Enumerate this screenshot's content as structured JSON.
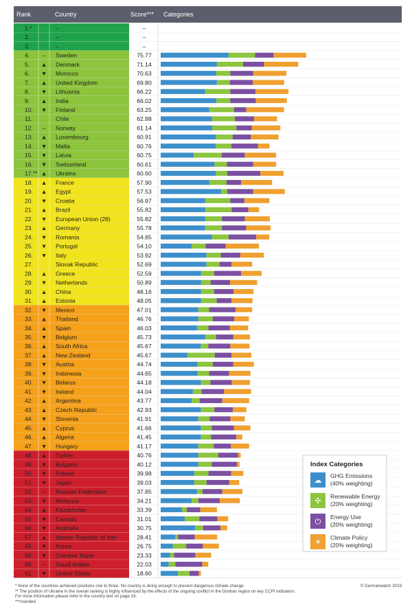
{
  "header": {
    "rank": "Rank",
    "country": "Country",
    "score": "Score***",
    "categories": "Categories"
  },
  "colors": {
    "ghg": "#3d8fcb",
    "renewable": "#8dc53e",
    "energy": "#7b4fa1",
    "policy": "#f0a030",
    "band_green": "#1fa34a",
    "band_lime": "#8cc43c",
    "band_yellow": "#f2e41c",
    "band_orange": "#f5a11a",
    "band_red": "#cd1f2b",
    "header": "#5b5f6b"
  },
  "legend": {
    "title": "Index Categories",
    "items": [
      {
        "key": "ghg",
        "line1": "GHG Emissions",
        "line2": "(40% weighting)",
        "icon": "cloud-icon"
      },
      {
        "key": "renewable",
        "line1": "Renewable Energy",
        "line2": "(20% weighting)",
        "icon": "windmill-icon"
      },
      {
        "key": "energy",
        "line1": "Energy Use",
        "line2": "(20% weighting)",
        "icon": "plug-icon"
      },
      {
        "key": "policy",
        "line1": "Climate Policy",
        "line2": "(20% weighting)",
        "icon": "sun-icon"
      }
    ]
  },
  "footnotes": [
    "*   None of the countries achieved positions one to three. No country is doing enough to prevent dangerous climate change.",
    "**  The position of Ukraine in the overall ranking is highly influenced by the effects of the ongoing conflict in the Donbas region on key CCPI indicators.",
    "     For more information please refer to the country text on page 19.",
    "***rounded"
  ],
  "copyright": "© Germanwatch 2019",
  "chart_data": {
    "type": "bar",
    "stacked": true,
    "orientation": "horizontal",
    "series_order": [
      "GHG Emissions",
      "Renewable Energy",
      "Energy Use",
      "Climate Policy"
    ],
    "rows": [
      {
        "rank": "1.*",
        "trend": "",
        "country": "–",
        "score": "–",
        "band": "green",
        "v": [
          0,
          0,
          0,
          0
        ]
      },
      {
        "rank": "2.",
        "trend": "",
        "country": "–",
        "score": "–",
        "band": "green",
        "v": [
          0,
          0,
          0,
          0
        ]
      },
      {
        "rank": "3.",
        "trend": "",
        "country": "–",
        "score": "–",
        "band": "green",
        "v": [
          0,
          0,
          0,
          0
        ]
      },
      {
        "rank": "4.",
        "trend": "–",
        "country": "Sweden",
        "score": "75.77",
        "band": "lime",
        "v": [
          31.4,
          12.2,
          8.6,
          15.1
        ]
      },
      {
        "rank": "5.",
        "trend": "▲",
        "country": "Denmark",
        "score": "71.14",
        "band": "lime",
        "v": [
          26.0,
          12.1,
          9.7,
          15.8
        ]
      },
      {
        "rank": "6.",
        "trend": "▼",
        "country": "Morocco",
        "score": "70.63",
        "band": "lime",
        "v": [
          25.7,
          6.5,
          10.6,
          15.3
        ]
      },
      {
        "rank": "7.",
        "trend": "▲",
        "country": "United Kingdom",
        "score": "69.80",
        "band": "lime",
        "v": [
          26.0,
          6.0,
          10.6,
          14.5
        ]
      },
      {
        "rank": "8.",
        "trend": "▼",
        "country": "Lithuania",
        "score": "66.22",
        "band": "lime",
        "v": [
          20.6,
          11.6,
          11.6,
          15.3
        ]
      },
      {
        "rank": "9.",
        "trend": "▲",
        "country": "India",
        "score": "66.02",
        "band": "lime",
        "v": [
          25.7,
          6.5,
          11.8,
          14.3
        ]
      },
      {
        "rank": "10.",
        "trend": "▼",
        "country": "Finland",
        "score": "63.25",
        "band": "lime",
        "v": [
          22.5,
          11.4,
          5.7,
          17.4
        ]
      },
      {
        "rank": "11.",
        "trend": "",
        "country": "Chile",
        "score": "62.88",
        "band": "lime",
        "v": [
          23.7,
          10.6,
          8.9,
          10.6
        ]
      },
      {
        "rank": "12.",
        "trend": "–",
        "country": "Norway",
        "score": "61.14",
        "band": "lime",
        "v": [
          23.9,
          11.1,
          7.1,
          13.2
        ]
      },
      {
        "rank": "13.",
        "trend": "▲",
        "country": "Luxembourg",
        "score": "60.91",
        "band": "lime",
        "v": [
          25.5,
          7.8,
          8.4,
          12.8
        ]
      },
      {
        "rank": "14.",
        "trend": "▼",
        "country": "Malta",
        "score": "60.76",
        "band": "lime",
        "v": [
          25.5,
          7.2,
          12.3,
          5.3
        ]
      },
      {
        "rank": "15.",
        "trend": "▼",
        "country": "Latvia",
        "score": "60.75",
        "band": "lime",
        "v": [
          15.3,
          12.9,
          10.7,
          14.5
        ]
      },
      {
        "rank": "16.",
        "trend": "▼",
        "country": "Switzerland",
        "score": "60.61",
        "band": "lime",
        "v": [
          24.9,
          5.7,
          12.2,
          10.6
        ]
      },
      {
        "rank": "17.**",
        "trend": "▲",
        "country": "Ukraine",
        "score": "60.60",
        "band": "lime",
        "v": [
          25.5,
          5.3,
          15.3,
          10.7
        ]
      },
      {
        "rank": "18.",
        "trend": "▲",
        "country": "France",
        "score": "57.90",
        "band": "yellow",
        "v": [
          22.5,
          7.9,
          6.8,
          14.3
        ]
      },
      {
        "rank": "19.",
        "trend": "▲",
        "country": "Egypt",
        "score": "57.53",
        "band": "yellow",
        "v": [
          28.0,
          2.8,
          12.0,
          14.6
        ]
      },
      {
        "rank": "20.",
        "trend": "▼",
        "country": "Croatia",
        "score": "56.97",
        "band": "yellow",
        "v": [
          20.6,
          11.6,
          6.5,
          11.6
        ]
      },
      {
        "rank": "21.",
        "trend": "▲",
        "country": "Brazil",
        "score": "55.82",
        "band": "yellow",
        "v": [
          20.6,
          12.2,
          7.7,
          5.0
        ]
      },
      {
        "rank": "22.",
        "trend": "▼",
        "country": "European Union (28)",
        "score": "55.82",
        "band": "yellow",
        "v": [
          20.6,
          7.7,
          10.6,
          11.6
        ]
      },
      {
        "rank": "23.",
        "trend": "▲",
        "country": "Germany",
        "score": "55.78",
        "band": "yellow",
        "v": [
          20.6,
          7.7,
          11.2,
          11.3
        ]
      },
      {
        "rank": "24.",
        "trend": "▼",
        "country": "Romania",
        "score": "54.85",
        "band": "yellow",
        "v": [
          23.7,
          7.7,
          12.8,
          6.0
        ]
      },
      {
        "rank": "25.",
        "trend": "▼",
        "country": "Portugal",
        "score": "54.10",
        "band": "yellow",
        "v": [
          14.3,
          6.5,
          9.3,
          15.3
        ]
      },
      {
        "rank": "26.",
        "trend": "▼",
        "country": "Italy",
        "score": "53.92",
        "band": "yellow",
        "v": [
          21.2,
          6.6,
          9.0,
          10.9
        ]
      },
      {
        "rank": "27.",
        "trend": "",
        "country": "Slovak Republic",
        "score": "52.69",
        "band": "yellow",
        "v": [
          21.2,
          6.0,
          5.6,
          9.5
        ]
      },
      {
        "rank": "28.",
        "trend": "▲",
        "country": "Greece",
        "score": "52.59",
        "band": "yellow",
        "v": [
          18.7,
          6.0,
          12.5,
          9.5
        ]
      },
      {
        "rank": "29.",
        "trend": "▼",
        "country": "Netherlands",
        "score": "50.89",
        "band": "yellow",
        "v": [
          18.7,
          4.4,
          9.0,
          12.5
        ]
      },
      {
        "rank": "30.",
        "trend": "▲",
        "country": "China",
        "score": "48.16",
        "band": "yellow",
        "v": [
          18.7,
          6.0,
          9.0,
          9.2
        ]
      },
      {
        "rank": "31.",
        "trend": "▲",
        "country": "Estonia",
        "score": "48.05",
        "band": "yellow",
        "v": [
          18.7,
          7.2,
          6.8,
          9.8
        ]
      },
      {
        "rank": "32.",
        "trend": "▼",
        "country": "Mexico",
        "score": "47.01",
        "band": "orange",
        "v": [
          17.4,
          5.0,
          12.2,
          7.7
        ]
      },
      {
        "rank": "33.",
        "trend": "▲",
        "country": "Thailand",
        "score": "46.76",
        "band": "orange",
        "v": [
          17.4,
          6.7,
          9.9,
          6.8
        ]
      },
      {
        "rank": "34.",
        "trend": "▲",
        "country": "Spain",
        "score": "46.03",
        "band": "orange",
        "v": [
          16.8,
          5.3,
          9.9,
          8.4
        ]
      },
      {
        "rank": "35.",
        "trend": "▼",
        "country": "Belgium",
        "score": "45.73",
        "band": "orange",
        "v": [
          20.6,
          5.0,
          8.0,
          7.7
        ]
      },
      {
        "rank": "36.",
        "trend": "▲",
        "country": "South Africa",
        "score": "45.67",
        "band": "orange",
        "v": [
          18.6,
          3.4,
          10.2,
          8.9
        ]
      },
      {
        "rank": "37.",
        "trend": "▲",
        "country": "New Zealand",
        "score": "45.67",
        "band": "orange",
        "v": [
          12.5,
          12.5,
          7.7,
          9.2
        ]
      },
      {
        "rank": "38.",
        "trend": "▼",
        "country": "Austria",
        "score": "44.74",
        "band": "orange",
        "v": [
          17.0,
          7.1,
          9.5,
          9.5
        ]
      },
      {
        "rank": "39.",
        "trend": "▼",
        "country": "Indonesia",
        "score": "44.65",
        "band": "orange",
        "v": [
          17.1,
          5.3,
          9.2,
          9.9
        ]
      },
      {
        "rank": "40.",
        "trend": "▼",
        "country": "Belarus",
        "score": "44.18",
        "band": "orange",
        "v": [
          18.6,
          4.4,
          9.9,
          8.4
        ]
      },
      {
        "rank": "41.",
        "trend": "▼",
        "country": "Ireland",
        "score": "44.04",
        "band": "orange",
        "v": [
          14.9,
          4.0,
          10.4,
          12.5
        ]
      },
      {
        "rank": "42.",
        "trend": "▲",
        "country": "Argentina",
        "score": "43.77",
        "band": "orange",
        "v": [
          14.3,
          3.7,
          10.5,
          12.4
        ]
      },
      {
        "rank": "43.",
        "trend": "▲",
        "country": "Czech Republic",
        "score": "42.93",
        "band": "orange",
        "v": [
          18.6,
          6.2,
          8.6,
          6.2
        ]
      },
      {
        "rank": "44.",
        "trend": "▼",
        "country": "Slovenia",
        "score": "41.91",
        "band": "orange",
        "v": [
          17.4,
          5.3,
          9.5,
          6.7
        ]
      },
      {
        "rank": "45.",
        "trend": "▲",
        "country": "Cyprus",
        "score": "41.66",
        "band": "orange",
        "v": [
          18.6,
          5.0,
          10.2,
          7.7
        ]
      },
      {
        "rank": "46.",
        "trend": "▲",
        "country": "Algeria",
        "score": "41.45",
        "band": "orange",
        "v": [
          18.6,
          4.7,
          11.7,
          2.7
        ]
      },
      {
        "rank": "47.",
        "trend": "▼",
        "country": "Hungary",
        "score": "41.17",
        "band": "orange",
        "v": [
          17.4,
          7.1,
          8.0,
          8.4
        ]
      },
      {
        "rank": "48.",
        "trend": "▲",
        "country": "Turkey",
        "score": "40.76",
        "band": "red",
        "v": [
          17.4,
          9.2,
          9.2,
          1.2
        ]
      },
      {
        "rank": "49.",
        "trend": "▼",
        "country": "Bulgaria",
        "score": "40.12",
        "band": "red",
        "v": [
          17.4,
          6.2,
          11.7,
          1.2
        ]
      },
      {
        "rank": "50.",
        "trend": "▼",
        "country": "Poland",
        "score": "39.98",
        "band": "red",
        "v": [
          15.6,
          6.5,
          10.5,
          5.6
        ]
      },
      {
        "rank": "51.",
        "trend": "▼",
        "country": "Japan",
        "score": "39.03",
        "band": "red",
        "v": [
          15.6,
          5.6,
          10.5,
          4.6
        ]
      },
      {
        "rank": "52.",
        "trend": "–",
        "country": "Russian Federation",
        "score": "37.85",
        "band": "red",
        "v": [
          16.8,
          2.5,
          9.2,
          9.3
        ]
      },
      {
        "rank": "53.",
        "trend": "▼",
        "country": "Malaysia",
        "score": "34.21",
        "band": "red",
        "v": [
          14.3,
          3.1,
          9.9,
          9.3
        ]
      },
      {
        "rank": "54.",
        "trend": "▲",
        "country": "Kazakhstan",
        "score": "33.39",
        "band": "red",
        "v": [
          9.9,
          2.2,
          6.2,
          7.7
        ]
      },
      {
        "rank": "55.",
        "trend": "▼",
        "country": "Canada",
        "score": "31.01",
        "band": "red",
        "v": [
          11.1,
          6.8,
          8.3,
          5.0
        ]
      },
      {
        "rank": "56.",
        "trend": "▼",
        "country": "Australia",
        "score": "30.75",
        "band": "red",
        "v": [
          15.9,
          3.7,
          8.0,
          3.1
        ]
      },
      {
        "rank": "57.",
        "trend": "▲",
        "country": "Islamic Republic of Iran",
        "score": "28.41",
        "band": "red",
        "v": [
          6.8,
          1.2,
          7.7,
          10.4
        ]
      },
      {
        "rank": "58.",
        "trend": "▼",
        "country": "Korea",
        "score": "26.75",
        "band": "red",
        "v": [
          5.6,
          6.2,
          7.7,
          7.4
        ]
      },
      {
        "rank": "59.",
        "trend": "▼",
        "country": "Chinese Taipei",
        "score": "23.33",
        "band": "red",
        "v": [
          4.3,
          1.9,
          9.8,
          7.3
        ]
      },
      {
        "rank": "60.",
        "trend": "–",
        "country": "Saudi Arabia",
        "score": "22.03",
        "band": "red",
        "v": [
          3.7,
          3.1,
          12.4,
          2.8
        ]
      },
      {
        "rank": "61.",
        "trend": "▼",
        "country": "United States",
        "score": "18.60",
        "band": "red",
        "v": [
          8.0,
          5.3,
          4.3,
          1.0
        ]
      }
    ]
  }
}
